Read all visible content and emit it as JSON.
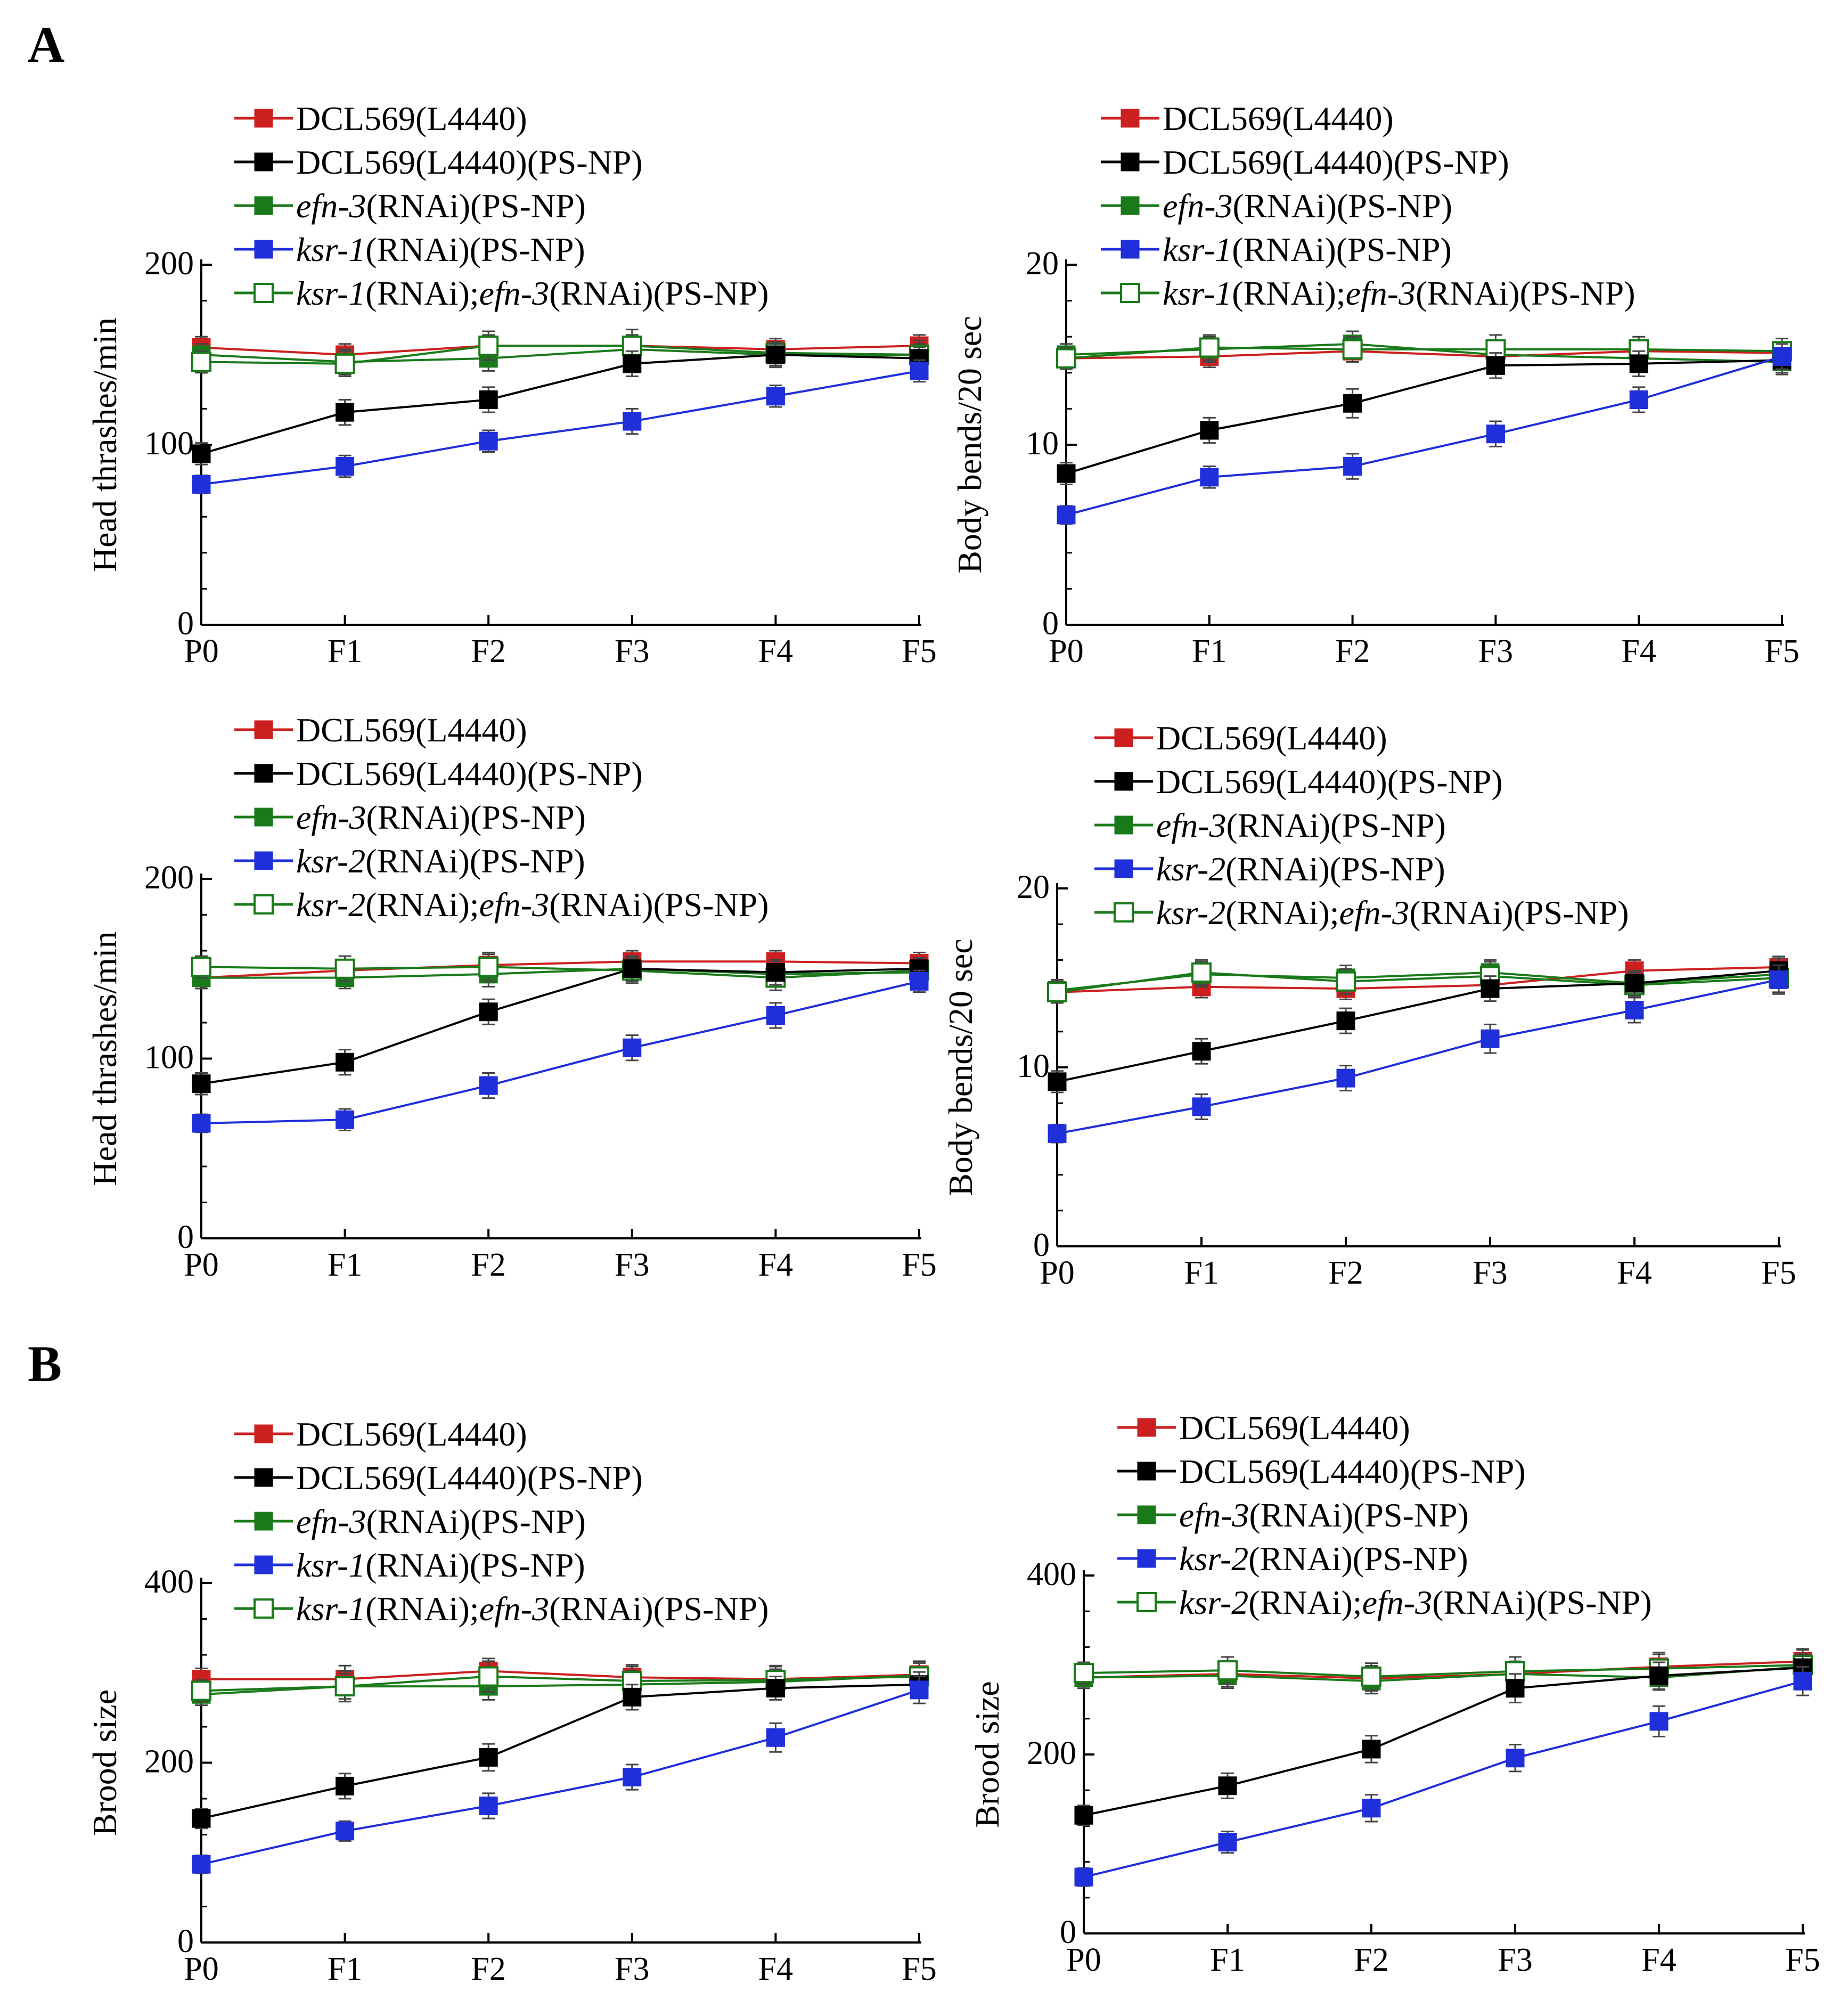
{
  "panel_labels": [
    "A",
    "B"
  ],
  "colors": {
    "DCL569(L4440)": "#cc1f1f",
    "DCL569(L4440)(PS-NP)": "#000000",
    "efn-3(RNAi)(PS-NP)": "#1a7a1a",
    "ksr(RNAi)(PS-NP)": "#1f2fd9",
    "ksr(RNAi);efn-3(RNAi)(PS-NP)": "#1a7a1a"
  },
  "chart_data": [
    {
      "id": "a1",
      "panel": "A",
      "type": "line",
      "ylabel": "Head thrashes/min",
      "xlabel": "",
      "categories": [
        "P0",
        "F1",
        "F2",
        "F3",
        "F4",
        "F5"
      ],
      "ylim": [
        0,
        200
      ],
      "yticks": [
        0,
        100,
        200
      ],
      "series": [
        {
          "key": "dcl",
          "legend": [
            {
              "t": "DCL569(L4440)",
              "i": false
            }
          ],
          "values": [
            154,
            150,
            155,
            155,
            153,
            155
          ],
          "errors": [
            6,
            6,
            6,
            6,
            6,
            6
          ]
        },
        {
          "key": "dclps",
          "legend": [
            {
              "t": "DCL569(L4440)(PS-NP)",
              "i": false
            }
          ],
          "values": [
            95,
            118,
            125,
            145,
            150,
            148
          ],
          "errors": [
            6,
            7,
            7,
            7,
            6,
            6
          ]
        },
        {
          "key": "efn",
          "legend": [
            {
              "t": "efn-3",
              "i": true
            },
            {
              "t": "(RNAi)(PS-NP)",
              "i": false
            }
          ],
          "values": [
            150,
            146,
            148,
            153,
            150,
            150
          ],
          "errors": [
            6,
            7,
            7,
            7,
            7,
            6
          ]
        },
        {
          "key": "ksr",
          "legend": [
            {
              "t": "ksr-1",
              "i": true
            },
            {
              "t": "(RNAi)(PS-NP)",
              "i": false
            }
          ],
          "values": [
            78,
            88,
            102,
            113,
            127,
            141
          ],
          "errors": [
            5,
            6,
            6,
            7,
            6,
            6
          ]
        },
        {
          "key": "dbl",
          "legend": [
            {
              "t": "ksr-1",
              "i": true
            },
            {
              "t": "(RNAi);",
              "i": false
            },
            {
              "t": "efn-3",
              "i": true
            },
            {
              "t": "(RNAi)(PS-NP)",
              "i": false
            }
          ],
          "values": [
            146,
            145,
            155,
            155,
            151,
            150
          ],
          "errors": [
            6,
            7,
            8,
            9,
            8,
            8
          ]
        }
      ]
    },
    {
      "id": "a2",
      "panel": "A",
      "type": "line",
      "ylabel": "Body bends/20 sec",
      "xlabel": "",
      "categories": [
        "P0",
        "F1",
        "F2",
        "F3",
        "F4",
        "F5"
      ],
      "ylim": [
        0,
        20
      ],
      "yticks": [
        0,
        10,
        20
      ],
      "series": [
        {
          "key": "dcl",
          "legend": [
            {
              "t": "DCL569(L4440)",
              "i": false
            }
          ],
          "values": [
            14.8,
            14.9,
            15.2,
            14.9,
            15.2,
            15.1
          ],
          "errors": [
            0.6,
            0.6,
            0.6,
            0.6,
            0.6,
            0.6
          ]
        },
        {
          "key": "dclps",
          "legend": [
            {
              "t": "DCL569(L4440)(PS-NP)",
              "i": false
            }
          ],
          "values": [
            8.4,
            10.8,
            12.3,
            14.4,
            14.5,
            14.7
          ],
          "errors": [
            0.6,
            0.7,
            0.8,
            0.7,
            0.7,
            0.7
          ]
        },
        {
          "key": "efn",
          "legend": [
            {
              "t": "efn-3",
              "i": true
            },
            {
              "t": "(RNAi)(PS-NP)",
              "i": false
            }
          ],
          "values": [
            15.0,
            15.3,
            15.6,
            15.0,
            14.8,
            14.6
          ],
          "errors": [
            0.6,
            0.7,
            0.7,
            0.7,
            0.7,
            0.7
          ]
        },
        {
          "key": "ksr",
          "legend": [
            {
              "t": "ksr-1",
              "i": true
            },
            {
              "t": "(RNAi)(PS-NP)",
              "i": false
            }
          ],
          "values": [
            6.1,
            8.2,
            8.8,
            10.6,
            12.5,
            14.9
          ],
          "errors": [
            0.5,
            0.6,
            0.7,
            0.7,
            0.7,
            0.7
          ]
        },
        {
          "key": "dbl",
          "legend": [
            {
              "t": "ksr-1",
              "i": true
            },
            {
              "t": "(RNAi);",
              "i": false
            },
            {
              "t": "efn-3",
              "i": true
            },
            {
              "t": "(RNAi)(PS-NP)",
              "i": false
            }
          ],
          "values": [
            14.8,
            15.4,
            15.3,
            15.3,
            15.3,
            15.2
          ],
          "errors": [
            0.6,
            0.7,
            0.7,
            0.8,
            0.7,
            0.7
          ]
        }
      ]
    },
    {
      "id": "a3",
      "panel": "A",
      "type": "line",
      "ylabel": "Head thrashes/min",
      "xlabel": "",
      "categories": [
        "P0",
        "F1",
        "F2",
        "F3",
        "F4",
        "F5"
      ],
      "ylim": [
        0,
        200
      ],
      "yticks": [
        0,
        100,
        200
      ],
      "series": [
        {
          "key": "dcl",
          "legend": [
            {
              "t": "DCL569(L4440)",
              "i": false
            }
          ],
          "values": [
            145,
            149,
            152,
            154,
            154,
            153
          ],
          "errors": [
            6,
            6,
            6,
            6,
            6,
            6
          ]
        },
        {
          "key": "dclps",
          "legend": [
            {
              "t": "DCL569(L4440)(PS-NP)",
              "i": false
            }
          ],
          "values": [
            86,
            98,
            126,
            150,
            148,
            150
          ],
          "errors": [
            6,
            7,
            7,
            7,
            7,
            6
          ]
        },
        {
          "key": "efn",
          "legend": [
            {
              "t": "efn-3",
              "i": true
            },
            {
              "t": "(RNAi)(PS-NP)",
              "i": false
            }
          ],
          "values": [
            145,
            145,
            147,
            150,
            147,
            148
          ],
          "errors": [
            6,
            6,
            7,
            7,
            7,
            6
          ]
        },
        {
          "key": "ksr",
          "legend": [
            {
              "t": "ksr-2",
              "i": true
            },
            {
              "t": "(RNAi)(PS-NP)",
              "i": false
            }
          ],
          "values": [
            64,
            66,
            85,
            106,
            124,
            143
          ],
          "errors": [
            5,
            6,
            7,
            7,
            7,
            6
          ]
        },
        {
          "key": "dbl",
          "legend": [
            {
              "t": "ksr-2",
              "i": true
            },
            {
              "t": "(RNAi);",
              "i": false
            },
            {
              "t": "efn-3",
              "i": true
            },
            {
              "t": "(RNAi)(PS-NP)",
              "i": false
            }
          ],
          "values": [
            151,
            150,
            151,
            149,
            145,
            149
          ],
          "errors": [
            6,
            7,
            8,
            7,
            7,
            7
          ]
        }
      ]
    },
    {
      "id": "a4",
      "panel": "A",
      "type": "line",
      "ylabel": "Body bends/20 sec",
      "xlabel": "",
      "categories": [
        "P0",
        "F1",
        "F2",
        "F3",
        "F4",
        "F5"
      ],
      "ylim": [
        0,
        20
      ],
      "yticks": [
        0,
        10,
        20
      ],
      "series": [
        {
          "key": "dcl",
          "legend": [
            {
              "t": "DCL569(L4440)",
              "i": false
            }
          ],
          "values": [
            14.2,
            14.5,
            14.4,
            14.6,
            15.4,
            15.6
          ],
          "errors": [
            0.6,
            0.6,
            0.6,
            0.6,
            0.6,
            0.6
          ]
        },
        {
          "key": "dclps",
          "legend": [
            {
              "t": "DCL569(L4440)(PS-NP)",
              "i": false
            }
          ],
          "values": [
            9.2,
            10.9,
            12.6,
            14.4,
            14.7,
            15.4
          ],
          "errors": [
            0.6,
            0.7,
            0.7,
            0.7,
            0.7,
            0.7
          ]
        },
        {
          "key": "efn",
          "legend": [
            {
              "t": "efn-3",
              "i": true
            },
            {
              "t": "(RNAi)(PS-NP)",
              "i": false
            }
          ],
          "values": [
            14.3,
            15.2,
            15.0,
            15.3,
            14.7,
            15.2
          ],
          "errors": [
            0.6,
            0.7,
            0.7,
            0.7,
            0.7,
            0.7
          ]
        },
        {
          "key": "ksr",
          "legend": [
            {
              "t": "ksr-2",
              "i": true
            },
            {
              "t": "(RNAi)(PS-NP)",
              "i": false
            }
          ],
          "values": [
            6.3,
            7.8,
            9.4,
            11.6,
            13.2,
            14.9
          ],
          "errors": [
            0.5,
            0.7,
            0.7,
            0.8,
            0.7,
            0.8
          ]
        },
        {
          "key": "dbl",
          "legend": [
            {
              "t": "ksr-2",
              "i": true
            },
            {
              "t": "(RNAi);",
              "i": false
            },
            {
              "t": "efn-3",
              "i": true
            },
            {
              "t": "(RNAi)(PS-NP)",
              "i": false
            }
          ],
          "values": [
            14.2,
            15.3,
            14.8,
            15.1,
            14.6,
            15.0
          ],
          "errors": [
            0.6,
            0.7,
            0.7,
            0.8,
            0.7,
            0.8
          ]
        }
      ]
    },
    {
      "id": "b1",
      "panel": "B",
      "type": "line",
      "ylabel": "Brood size",
      "xlabel": "",
      "categories": [
        "P0",
        "F1",
        "F2",
        "F3",
        "F4",
        "F5"
      ],
      "ylim": [
        0,
        400
      ],
      "yticks": [
        0,
        200,
        400
      ],
      "series": [
        {
          "key": "dcl",
          "legend": [
            {
              "t": "DCL569(L4440)",
              "i": false
            }
          ],
          "values": [
            293,
            293,
            302,
            295,
            293,
            298
          ],
          "errors": [
            12,
            15,
            14,
            14,
            14,
            13
          ]
        },
        {
          "key": "dclps",
          "legend": [
            {
              "t": "DCL569(L4440)(PS-NP)",
              "i": false
            }
          ],
          "values": [
            138,
            174,
            206,
            273,
            283,
            287
          ],
          "errors": [
            11,
            14,
            15,
            14,
            13,
            14
          ]
        },
        {
          "key": "efn",
          "legend": [
            {
              "t": "efn-3",
              "i": true
            },
            {
              "t": "(RNAi)(PS-NP)",
              "i": false
            }
          ],
          "values": [
            276,
            285,
            285,
            287,
            290,
            297
          ],
          "errors": [
            12,
            14,
            15,
            15,
            14,
            14
          ]
        },
        {
          "key": "ksr",
          "legend": [
            {
              "t": "ksr-1",
              "i": true
            },
            {
              "t": "(RNAi)(PS-NP)",
              "i": false
            }
          ],
          "values": [
            87,
            124,
            152,
            184,
            228,
            281
          ],
          "errors": [
            10,
            11,
            14,
            14,
            16,
            15
          ]
        },
        {
          "key": "dbl",
          "legend": [
            {
              "t": "ksr-1",
              "i": true
            },
            {
              "t": "(RNAi);",
              "i": false
            },
            {
              "t": "efn-3",
              "i": true
            },
            {
              "t": "(RNAi)(PS-NP)",
              "i": false
            }
          ],
          "values": [
            280,
            285,
            296,
            291,
            292,
            296
          ],
          "errors": [
            12,
            17,
            17,
            16,
            16,
            17
          ]
        }
      ]
    },
    {
      "id": "b2",
      "panel": "B",
      "type": "line",
      "ylabel": "Brood size",
      "xlabel": "",
      "categories": [
        "P0",
        "F1",
        "F2",
        "F3",
        "F4",
        "F5"
      ],
      "ylim": [
        0,
        400
      ],
      "yticks": [
        0,
        200,
        400
      ],
      "series": [
        {
          "key": "dcl",
          "legend": [
            {
              "t": "DCL569(L4440)",
              "i": false
            }
          ],
          "values": [
            286,
            290,
            285,
            290,
            298,
            304
          ],
          "errors": [
            12,
            14,
            14,
            14,
            14,
            14
          ]
        },
        {
          "key": "dclps",
          "legend": [
            {
              "t": "DCL569(L4440)(PS-NP)",
              "i": false
            }
          ],
          "values": [
            132,
            165,
            206,
            274,
            288,
            297
          ],
          "errors": [
            11,
            14,
            15,
            16,
            15,
            15
          ]
        },
        {
          "key": "efn",
          "legend": [
            {
              "t": "efn-3",
              "i": true
            },
            {
              "t": "(RNAi)(PS-NP)",
              "i": false
            }
          ],
          "values": [
            286,
            288,
            282,
            290,
            286,
            298
          ],
          "errors": [
            12,
            14,
            14,
            14,
            14,
            14
          ]
        },
        {
          "key": "ksr",
          "legend": [
            {
              "t": "ksr-2",
              "i": true
            },
            {
              "t": "(RNAi)(PS-NP)",
              "i": false
            }
          ],
          "values": [
            63,
            102,
            140,
            196,
            237,
            282
          ],
          "errors": [
            10,
            12,
            15,
            15,
            17,
            16
          ]
        },
        {
          "key": "dbl",
          "legend": [
            {
              "t": "ksr-2",
              "i": true
            },
            {
              "t": "(RNAi);",
              "i": false
            },
            {
              "t": "efn-3",
              "i": true
            },
            {
              "t": "(RNAi)(PS-NP)",
              "i": false
            }
          ],
          "values": [
            291,
            294,
            287,
            293,
            296,
            300
          ],
          "errors": [
            12,
            15,
            15,
            16,
            18,
            17
          ]
        }
      ]
    }
  ]
}
